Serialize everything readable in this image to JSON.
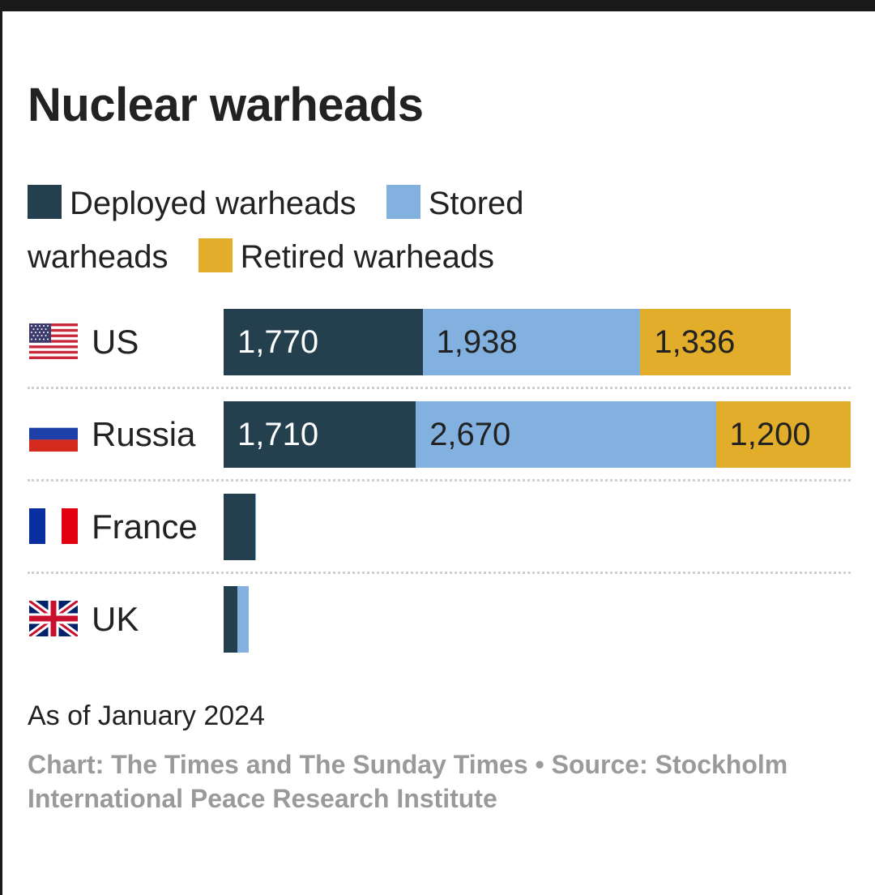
{
  "title": "Nuclear warheads",
  "legend": [
    {
      "label": "Deployed warheads",
      "color": "#24404f"
    },
    {
      "label": "Stored warheads",
      "color": "#82b1e0"
    },
    {
      "label": "Retired warheads",
      "color": "#e1ad2a"
    }
  ],
  "note": "As of January 2024",
  "source": "Chart: The Times and The Sunday Times • Source: Stockholm International Peace Research Institute",
  "chart_data": {
    "type": "bar",
    "orientation": "horizontal",
    "stacked": true,
    "title": "Nuclear warheads",
    "categories": [
      "US",
      "Russia",
      "France",
      "UK"
    ],
    "series": [
      {
        "name": "Deployed warheads",
        "color": "#24404f",
        "values": [
          1770,
          1710,
          280,
          120
        ]
      },
      {
        "name": "Stored warheads",
        "color": "#82b1e0",
        "values": [
          1938,
          2670,
          10,
          105
        ]
      },
      {
        "name": "Retired warheads",
        "color": "#e1ad2a",
        "values": [
          1336,
          1200,
          0,
          0
        ]
      }
    ],
    "data_labels": [
      [
        "1,770",
        "1,938",
        "1,336"
      ],
      [
        "1,710",
        "2,670",
        "1,200"
      ],
      [
        "",
        "",
        ""
      ],
      [
        "",
        "",
        ""
      ]
    ],
    "xlim": [
      0,
      5580
    ],
    "grid": false,
    "legend_position": "top"
  },
  "rows": [
    {
      "country": "US",
      "flag": "us-flag-icon"
    },
    {
      "country": "Russia",
      "flag": "russia-flag-icon"
    },
    {
      "country": "France",
      "flag": "france-flag-icon"
    },
    {
      "country": "UK",
      "flag": "uk-flag-icon"
    }
  ]
}
